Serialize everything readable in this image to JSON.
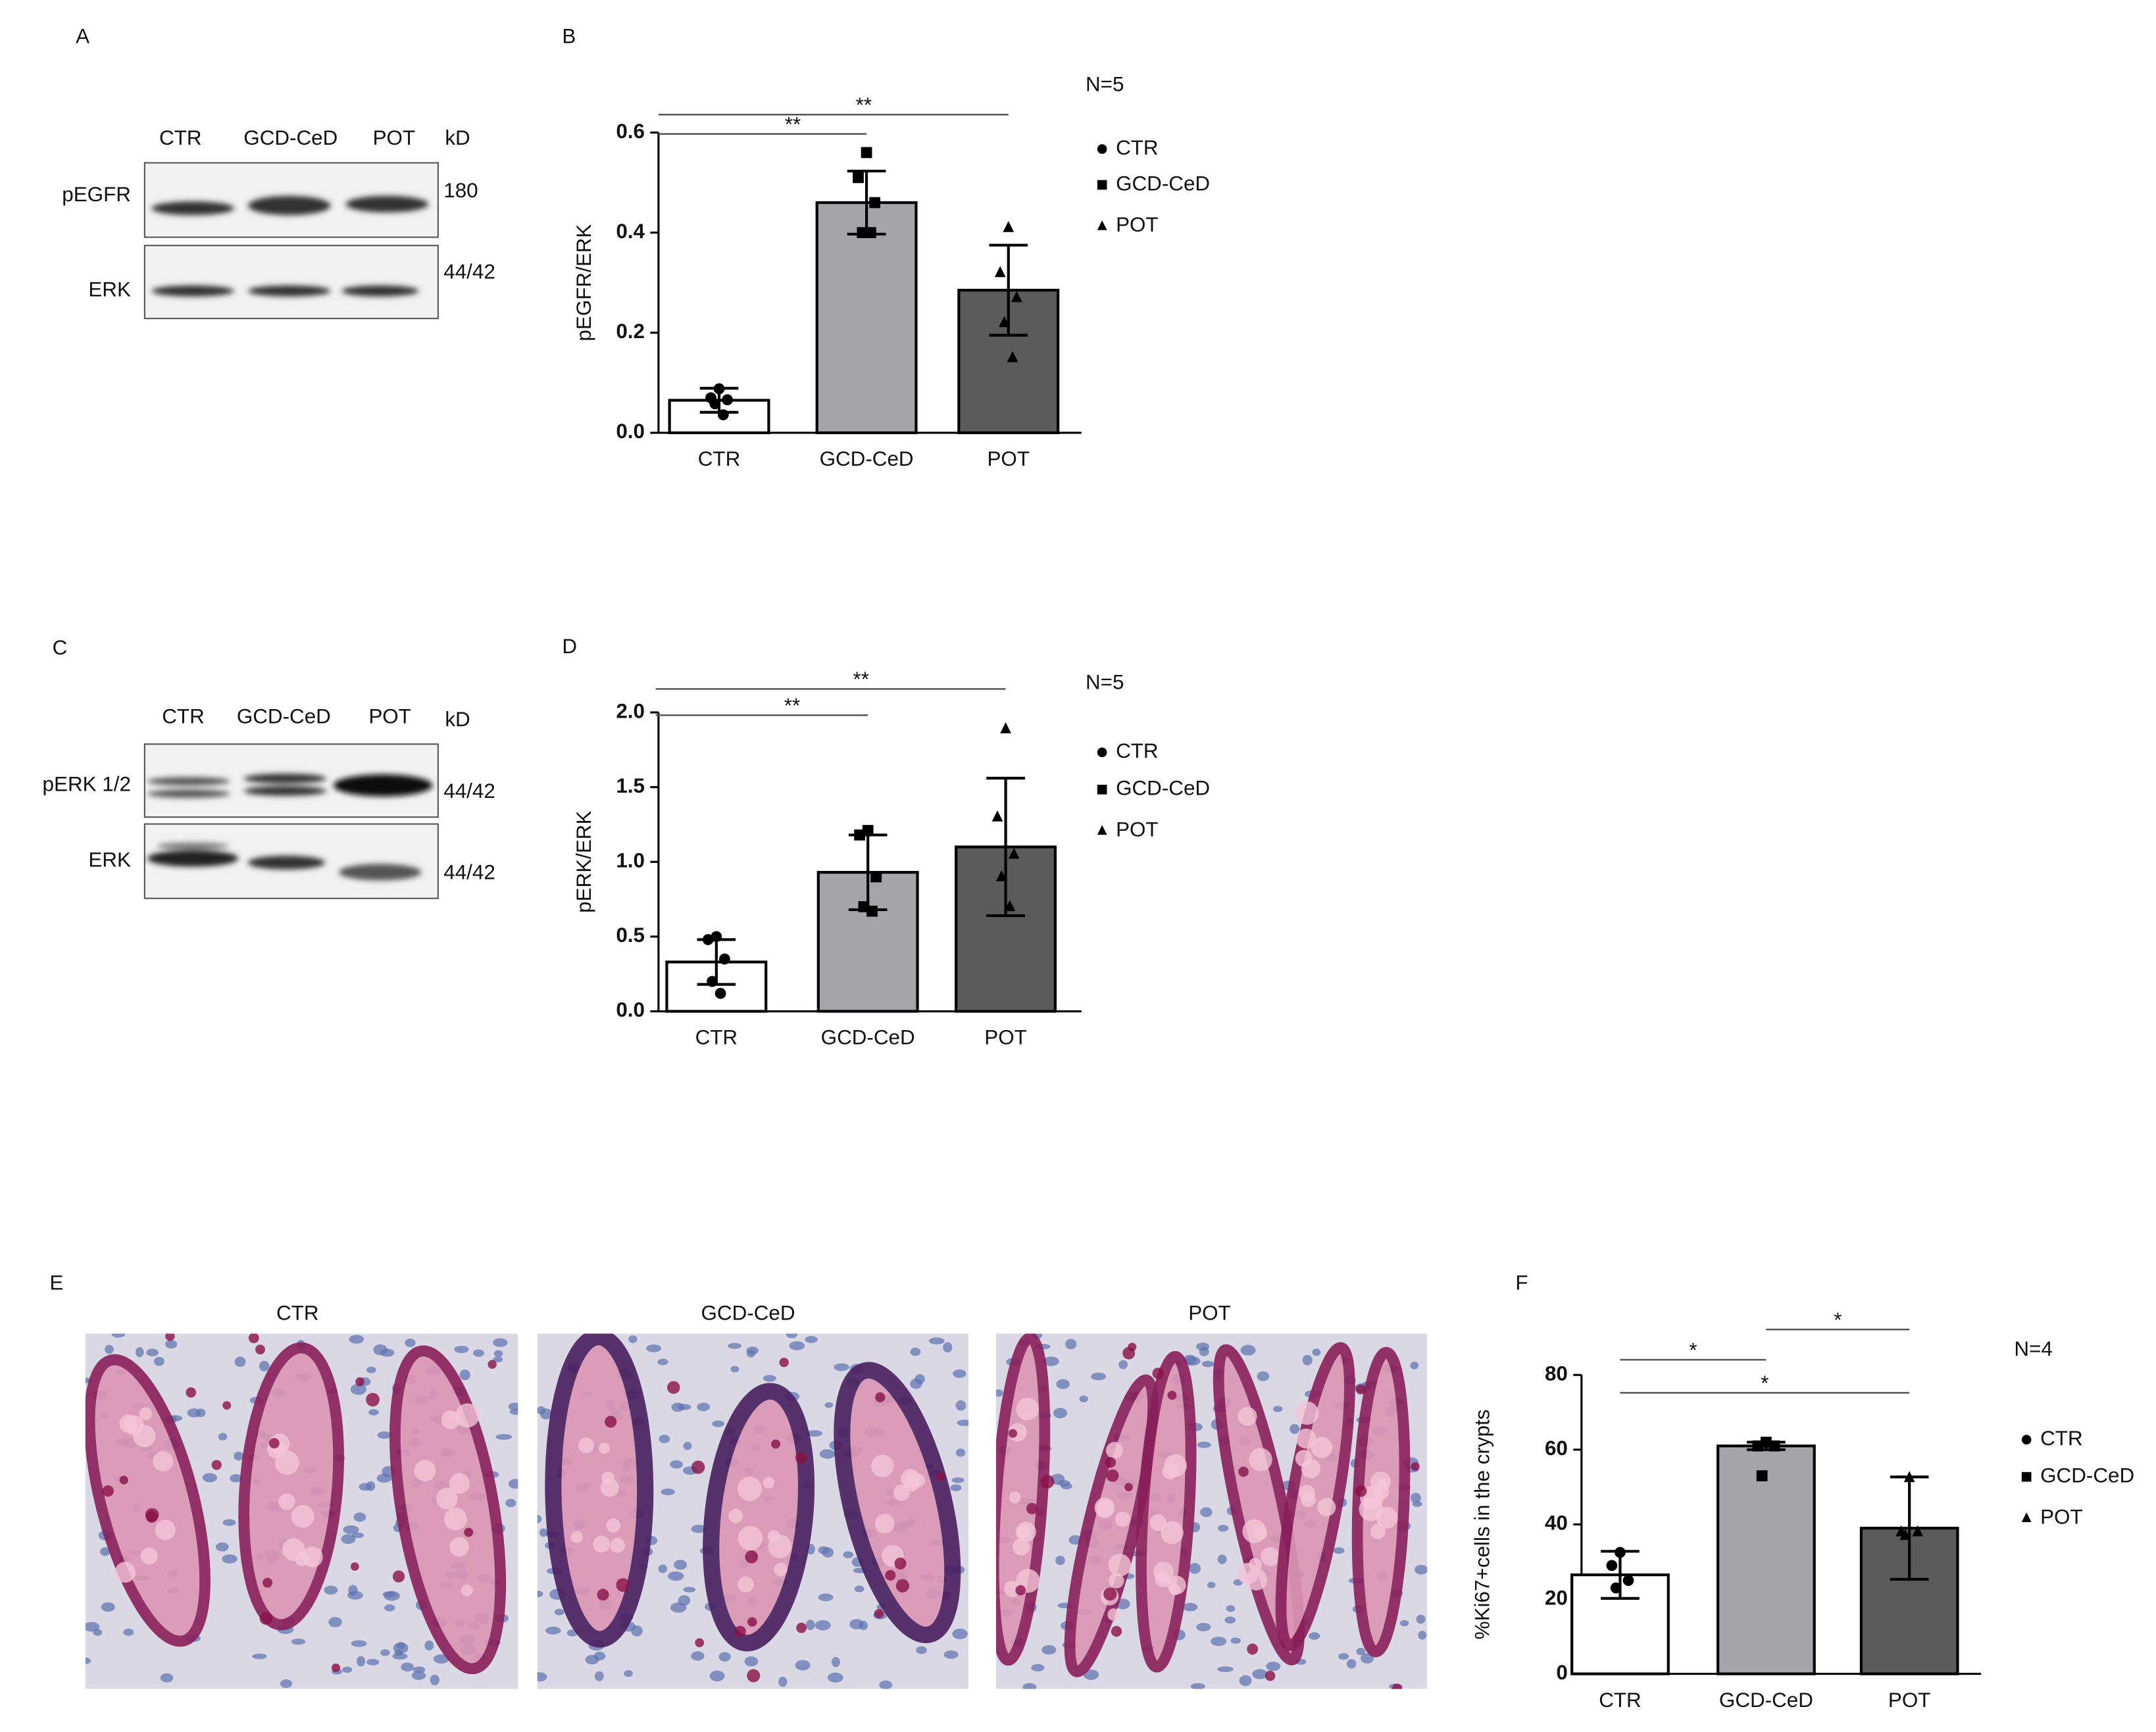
{
  "panels": {
    "A": {
      "letter": "A",
      "lanes": [
        "CTR",
        "GCD-CeD",
        "POT"
      ],
      "unit": "kD",
      "rows": [
        {
          "label": "pEGFR",
          "size": "180"
        },
        {
          "label": "ERK",
          "size": "44/42"
        }
      ]
    },
    "C": {
      "letter": "C",
      "lanes": [
        "CTR",
        "GCD-CeD",
        "POT"
      ],
      "unit": "kD",
      "rows": [
        {
          "label": "pERK 1/2",
          "size": "44/42"
        },
        {
          "label": "ERK",
          "size": "44/42"
        }
      ]
    },
    "E": {
      "letter": "E",
      "titles": [
        "CTR",
        "GCD-CeD",
        "POT"
      ]
    }
  },
  "chart_data": [
    {
      "type": "bar",
      "panel": "B",
      "note": "N=5",
      "y_label": "pEGFR/ERK",
      "categories": [
        "CTR",
        "GCD-CeD",
        "POT"
      ],
      "colors": [
        "#ffffff",
        "#a4a4a9",
        "#5b5b5b"
      ],
      "markers": [
        "circle",
        "square",
        "triangle"
      ],
      "values": [
        0.065,
        0.46,
        0.285
      ],
      "errors": [
        0.024,
        0.063,
        0.09
      ],
      "points": [
        [
          0.088,
          0.07,
          0.066,
          0.058,
          0.036
        ],
        [
          0.56,
          0.51,
          0.46,
          0.4,
          0.4
        ],
        [
          0.41,
          0.32,
          0.27,
          0.22,
          0.15
        ]
      ],
      "ylim": [
        0,
        0.6
      ],
      "yticks": [
        {
          "value": 0,
          "label": "0.0"
        },
        0.2,
        0.4,
        0.6
      ],
      "significance": [
        {
          "label": "**",
          "from": "CTR",
          "to": "GCD-CeD"
        },
        {
          "label": "**",
          "from": "CTR",
          "to": "POT"
        }
      ]
    },
    {
      "type": "bar",
      "panel": "D",
      "note": "N=5",
      "y_label": "pERK/ERK",
      "categories": [
        "CTR",
        "GCD-CeD",
        "POT"
      ],
      "colors": [
        "#ffffff",
        "#a4a4a9",
        "#5b5b5b"
      ],
      "markers": [
        "circle",
        "square",
        "triangle"
      ],
      "values": [
        0.33,
        0.93,
        1.1
      ],
      "errors": [
        0.15,
        0.25,
        0.46
      ],
      "points": [
        [
          0.5,
          0.48,
          0.35,
          0.2,
          0.12
        ],
        [
          1.21,
          1.18,
          0.9,
          0.7,
          0.67
        ],
        [
          1.89,
          1.3,
          1.05,
          0.9,
          0.7
        ]
      ],
      "ylim": [
        0,
        2.0
      ],
      "yticks": [
        {
          "value": 0,
          "label": "0.0"
        },
        0.5,
        {
          "value": 1,
          "label": "1.0"
        },
        1.5,
        {
          "value": 2,
          "label": "2.0"
        }
      ],
      "significance": [
        {
          "label": "**",
          "from": "CTR",
          "to": "GCD-CeD"
        },
        {
          "label": "**",
          "from": "CTR",
          "to": "POT"
        }
      ]
    },
    {
      "type": "bar",
      "panel": "F",
      "note": "N=4",
      "y_label": "%Ki67+cells in the crypts",
      "categories": [
        "CTR",
        "GCD-CeD",
        "POT"
      ],
      "colors": [
        "#ffffff",
        "#a4a4a9",
        "#5b5b5b"
      ],
      "markers": [
        "circle",
        "square",
        "triangle"
      ],
      "values": [
        26.5,
        61,
        39
      ],
      "errors": [
        6.3,
        1,
        13.7
      ],
      "points": [
        [
          32.5,
          29,
          25,
          23
        ],
        [
          62,
          61,
          61,
          53
        ],
        [
          52.5,
          38,
          38,
          37
        ]
      ],
      "ylim": [
        0,
        80
      ],
      "yticks": [
        0,
        20,
        40,
        60,
        80
      ],
      "significance": [
        {
          "label": "*",
          "from": "CTR",
          "to": "GCD-CeD"
        },
        {
          "label": "*",
          "from": "GCD-CeD",
          "to": "POT"
        },
        {
          "label": "*",
          "from": "CTR",
          "to": "POT"
        }
      ]
    }
  ]
}
